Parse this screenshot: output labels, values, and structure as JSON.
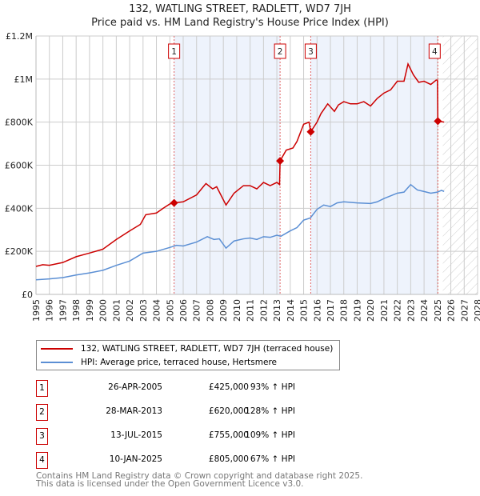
{
  "chart_data": {
    "type": "line",
    "title": "132, WATLING STREET, RADLETT, WD7 7JH",
    "subtitle": "Price paid vs. HM Land Registry's House Price Index (HPI)",
    "xlim": [
      1995,
      2028
    ],
    "ylim": [
      0,
      1200000
    ],
    "x_ticks": [
      "1995",
      "1996",
      "1997",
      "1998",
      "1999",
      "2000",
      "2001",
      "2002",
      "2003",
      "2004",
      "2005",
      "2006",
      "2007",
      "2008",
      "2009",
      "2010",
      "2011",
      "2012",
      "2013",
      "2014",
      "2015",
      "2016",
      "2017",
      "2018",
      "2019",
      "2020",
      "2021",
      "2022",
      "2023",
      "2024",
      "2025",
      "2026",
      "2027",
      "2028"
    ],
    "y_ticks": [
      {
        "v": 0,
        "label": "£0"
      },
      {
        "v": 200000,
        "label": "£200K"
      },
      {
        "v": 400000,
        "label": "£400K"
      },
      {
        "v": 600000,
        "label": "£600K"
      },
      {
        "v": 800000,
        "label": "£800K"
      },
      {
        "v": 1000000,
        "label": "£1M"
      },
      {
        "v": 1200000,
        "label": "£1.2M"
      }
    ],
    "grid": true,
    "forecast_start": 2025.4,
    "series": [
      {
        "name": "132, WATLING STREET, RADLETT, WD7 7JH (terraced house)",
        "color": "#cc0000",
        "points": [
          [
            1995,
            130000
          ],
          [
            1995.5,
            138000
          ],
          [
            1996,
            135000
          ],
          [
            1997,
            148000
          ],
          [
            1998,
            175000
          ],
          [
            1999,
            192000
          ],
          [
            2000,
            210000
          ],
          [
            2001,
            255000
          ],
          [
            2002,
            295000
          ],
          [
            2002.8,
            325000
          ],
          [
            2003.2,
            370000
          ],
          [
            2004,
            378000
          ],
          [
            2004.5,
            400000
          ],
          [
            2005,
            420000
          ],
          [
            2005.32,
            425000
          ],
          [
            2006,
            430000
          ],
          [
            2007,
            462000
          ],
          [
            2007.7,
            515000
          ],
          [
            2008.2,
            490000
          ],
          [
            2008.5,
            500000
          ],
          [
            2009.2,
            415000
          ],
          [
            2009.8,
            470000
          ],
          [
            2010.5,
            505000
          ],
          [
            2011,
            505000
          ],
          [
            2011.5,
            490000
          ],
          [
            2012,
            520000
          ],
          [
            2012.5,
            505000
          ],
          [
            2013,
            520000
          ],
          [
            2013.2,
            510000
          ],
          [
            2013.24,
            620000
          ],
          [
            2013.7,
            670000
          ],
          [
            2014.2,
            680000
          ],
          [
            2014.5,
            710000
          ],
          [
            2015,
            790000
          ],
          [
            2015.4,
            800000
          ],
          [
            2015.53,
            755000
          ],
          [
            2016,
            800000
          ],
          [
            2016.3,
            840000
          ],
          [
            2016.8,
            885000
          ],
          [
            2017.3,
            850000
          ],
          [
            2017.6,
            880000
          ],
          [
            2018,
            895000
          ],
          [
            2018.5,
            885000
          ],
          [
            2019,
            885000
          ],
          [
            2019.5,
            895000
          ],
          [
            2020,
            875000
          ],
          [
            2020.5,
            910000
          ],
          [
            2021,
            935000
          ],
          [
            2021.5,
            950000
          ],
          [
            2022,
            990000
          ],
          [
            2022.5,
            990000
          ],
          [
            2022.8,
            1070000
          ],
          [
            2023.2,
            1020000
          ],
          [
            2023.6,
            985000
          ],
          [
            2024,
            990000
          ],
          [
            2024.5,
            975000
          ],
          [
            2024.9,
            995000
          ],
          [
            2025.0,
            995000
          ],
          [
            2025.03,
            805000
          ],
          [
            2025.5,
            800000
          ]
        ]
      },
      {
        "name": "HPI: Average price, terraced house, Hertsmere",
        "color": "#5b8fd4",
        "points": [
          [
            1995,
            68000
          ],
          [
            1996,
            72000
          ],
          [
            1997,
            78000
          ],
          [
            1998,
            90000
          ],
          [
            1999,
            100000
          ],
          [
            2000,
            112000
          ],
          [
            2001,
            135000
          ],
          [
            2002,
            155000
          ],
          [
            2003,
            192000
          ],
          [
            2004,
            200000
          ],
          [
            2005,
            218000
          ],
          [
            2005.5,
            228000
          ],
          [
            2006,
            225000
          ],
          [
            2007,
            243000
          ],
          [
            2007.8,
            268000
          ],
          [
            2008.3,
            255000
          ],
          [
            2008.7,
            258000
          ],
          [
            2009.2,
            215000
          ],
          [
            2009.8,
            248000
          ],
          [
            2010.5,
            258000
          ],
          [
            2011,
            262000
          ],
          [
            2011.5,
            255000
          ],
          [
            2012,
            268000
          ],
          [
            2012.5,
            265000
          ],
          [
            2013,
            275000
          ],
          [
            2013.3,
            270000
          ],
          [
            2014,
            295000
          ],
          [
            2014.5,
            310000
          ],
          [
            2015,
            345000
          ],
          [
            2015.5,
            355000
          ],
          [
            2016,
            395000
          ],
          [
            2016.5,
            415000
          ],
          [
            2017,
            408000
          ],
          [
            2017.5,
            425000
          ],
          [
            2018,
            430000
          ],
          [
            2019,
            425000
          ],
          [
            2020,
            422000
          ],
          [
            2020.5,
            430000
          ],
          [
            2021,
            445000
          ],
          [
            2022,
            470000
          ],
          [
            2022.5,
            475000
          ],
          [
            2023,
            510000
          ],
          [
            2023.5,
            485000
          ],
          [
            2024,
            478000
          ],
          [
            2024.5,
            470000
          ],
          [
            2025,
            475000
          ],
          [
            2025.3,
            483000
          ],
          [
            2025.5,
            478000
          ]
        ]
      }
    ],
    "sales": [
      {
        "label": "1",
        "x": 2005.32,
        "price": 425000,
        "date": "26-APR-2005",
        "price_text": "£425,000",
        "hpi_text": "93% ↑ HPI"
      },
      {
        "label": "2",
        "x": 2013.24,
        "price": 620000,
        "date": "28-MAR-2013",
        "price_text": "£620,000",
        "hpi_text": "128% ↑ HPI"
      },
      {
        "label": "3",
        "x": 2015.53,
        "price": 755000,
        "date": "13-JUL-2015",
        "price_text": "£755,000",
        "hpi_text": "109% ↑ HPI"
      },
      {
        "label": "4",
        "x": 2025.03,
        "price": 805000,
        "date": "10-JAN-2025",
        "price_text": "£805,000",
        "hpi_text": "67% ↑ HPI"
      }
    ],
    "legend_placement": "below"
  },
  "footer": {
    "line1": "Contains HM Land Registry data © Crown copyright and database right 2025.",
    "line2": "This data is licensed under the Open Government Licence v3.0."
  }
}
